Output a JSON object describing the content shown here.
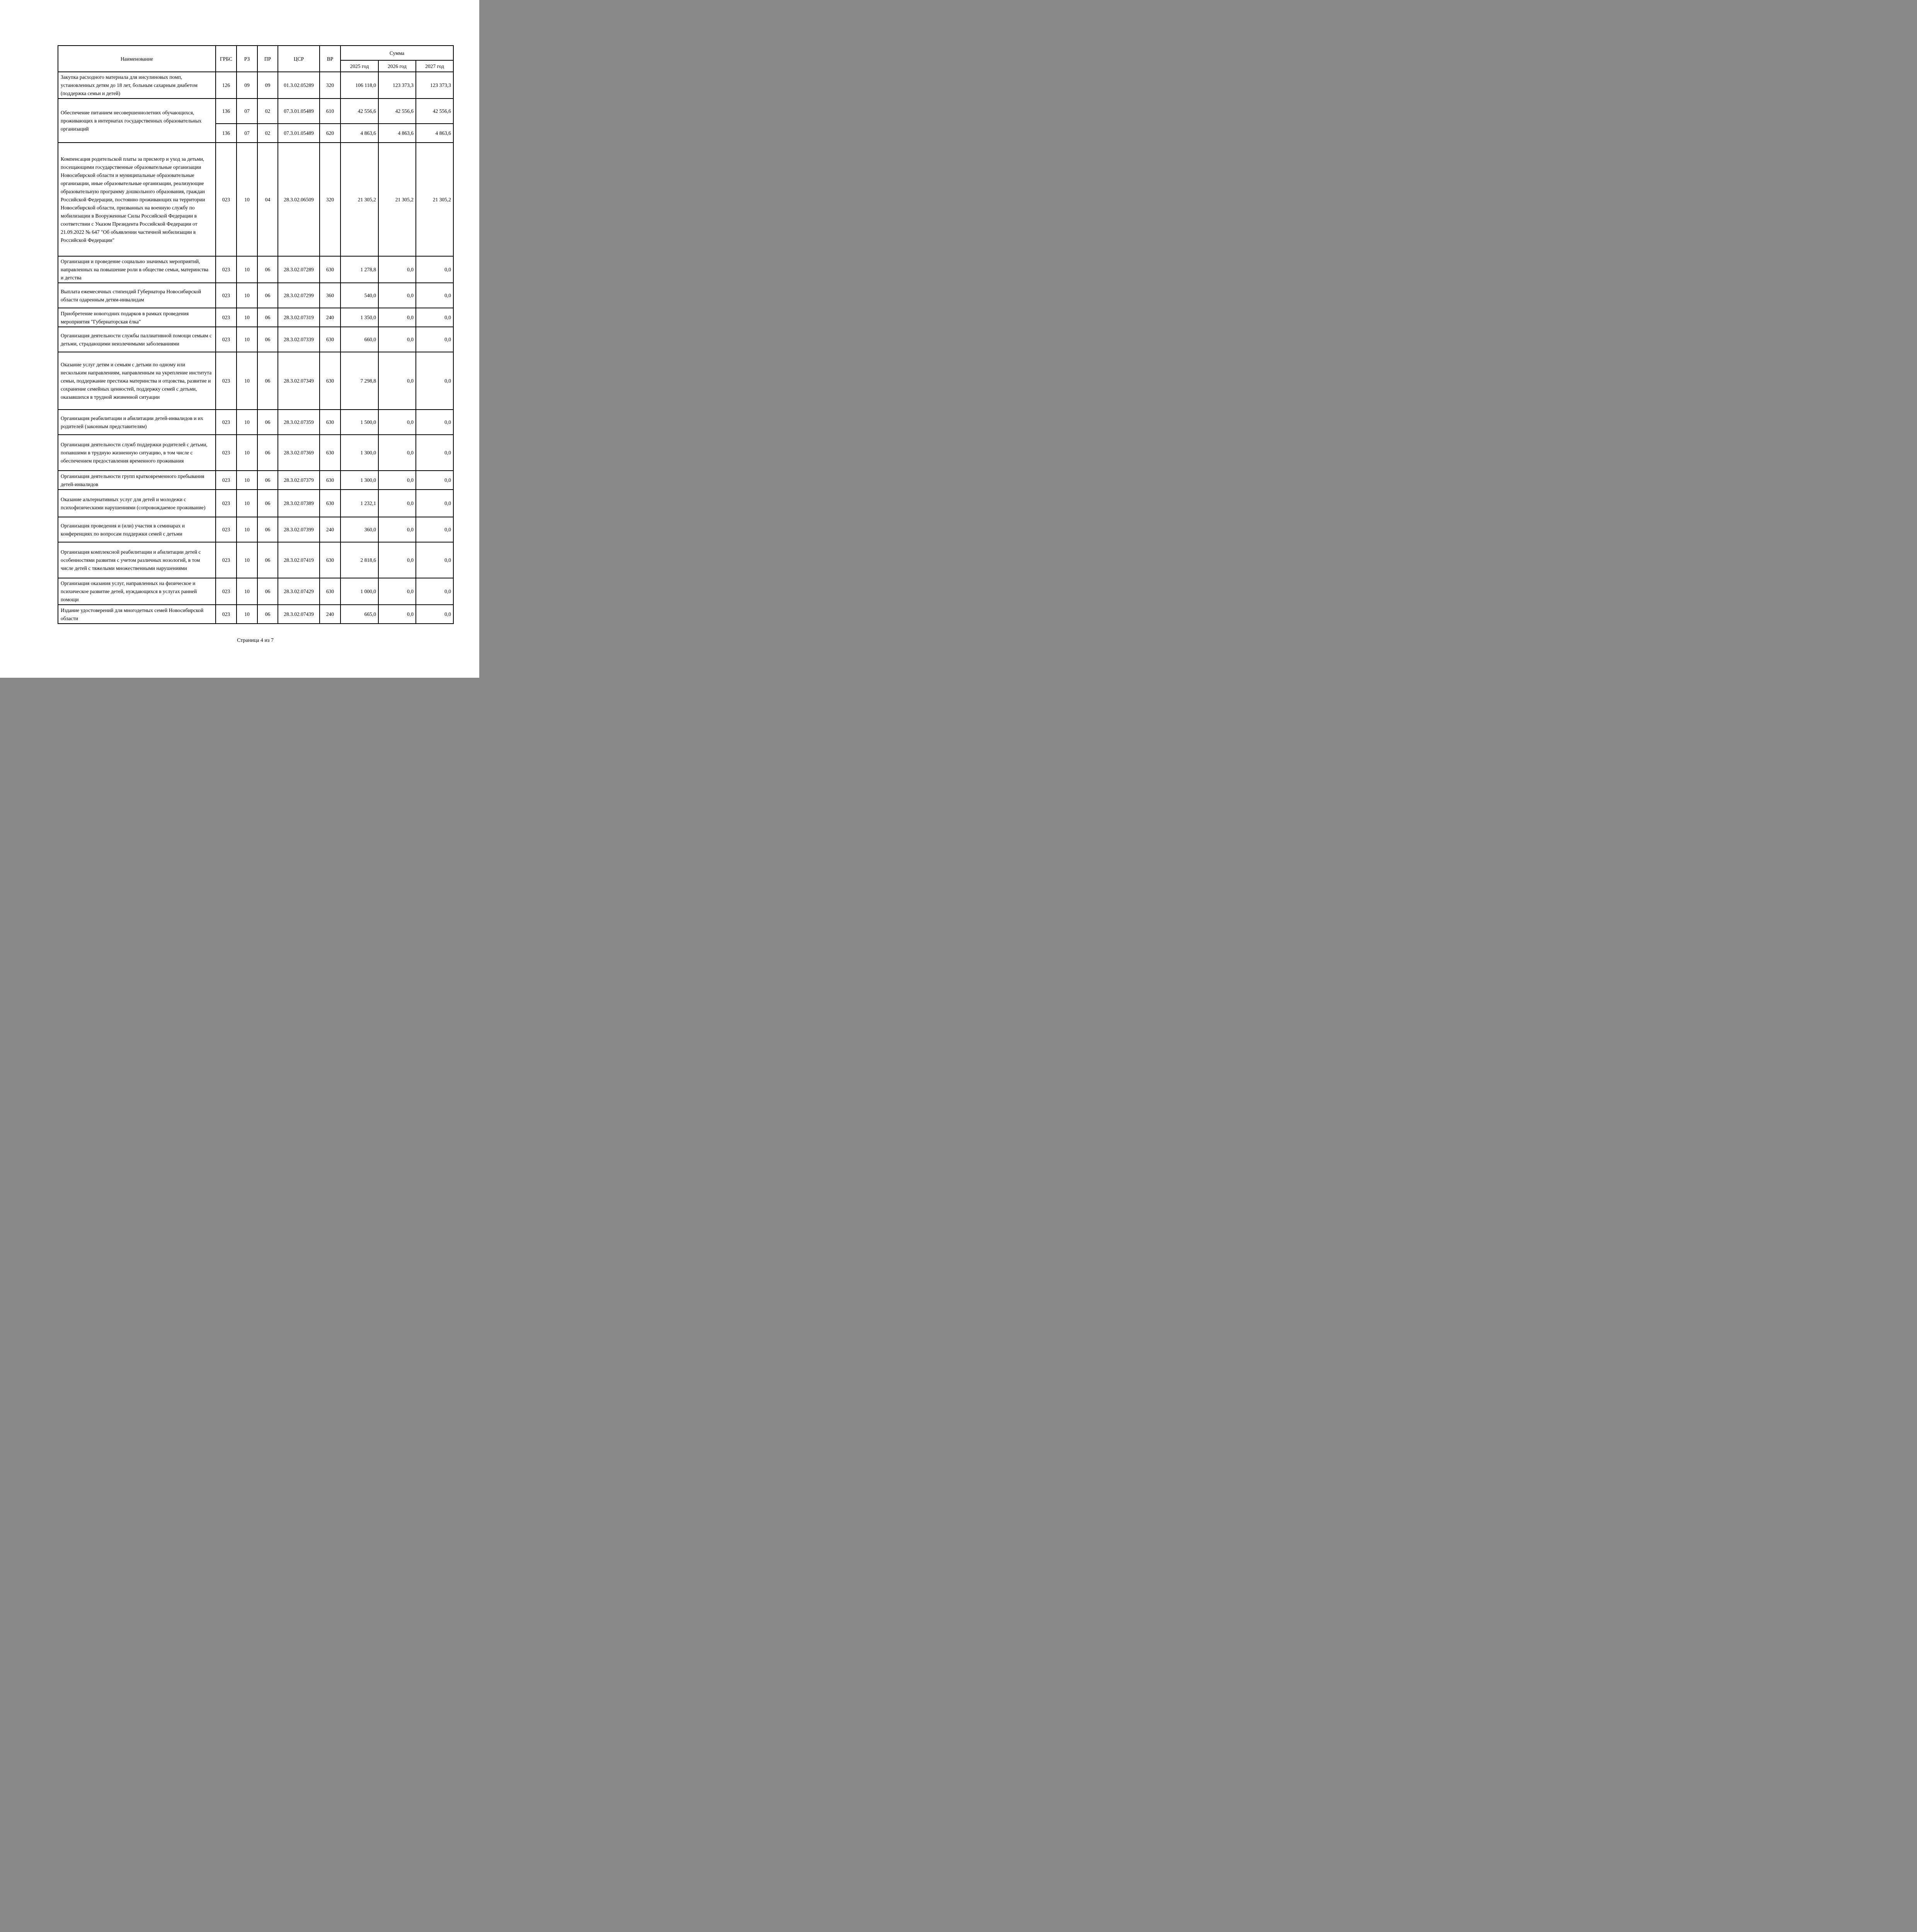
{
  "table": {
    "header": {
      "name": "Наименование",
      "grbs": "ГРБС",
      "rz": "РЗ",
      "pr": "ПР",
      "csr": "ЦСР",
      "vr": "ВР",
      "sum": "Сумма",
      "years": [
        "2025 год",
        "2026 год",
        "2027 год"
      ]
    },
    "rows": [
      {
        "name": "Закупка расходного материала для инсулиновых помп, установленных детям до 18 лет, больным сахарным диабетом (поддержка семьи и детей)",
        "grbs": "126",
        "rz": "09",
        "pr": "09",
        "csr": "01.3.02.05289",
        "vr": "320",
        "y2025": "106 118,0",
        "y2026": "123 373,3",
        "y2027": "123 373,3"
      },
      {
        "name": "Обеспечение питанием несовершеннолетних обучающихся, проживающих в интернатах государственных образовательных организаций",
        "name_rowspan": 2,
        "grbs": "136",
        "rz": "07",
        "pr": "02",
        "csr": "07.3.01.05489",
        "vr": "610",
        "y2025": "42 556,6",
        "y2026": "42 556,6",
        "y2027": "42 556,6"
      },
      {
        "name": null,
        "grbs": "136",
        "rz": "07",
        "pr": "02",
        "csr": "07.3.01.05489",
        "vr": "620",
        "y2025": "4 863,6",
        "y2026": "4 863,6",
        "y2027": "4 863,6"
      },
      {
        "name": "Компенсация родительской платы за присмотр и уход за детьми, посещающими государственные образовательные организации Новосибирской области и муниципальные образовательные организации, иные образовательные организации, реализующие образовательную программу дошкольного образования, граждан Российской Федерации, постоянно проживающих на территории Новосибирской области, призванных на военную службу по мобилизации в Вооруженные Силы Российской Федерации в соответствии с Указом Президента Российской Федерации от 21.09.2022 № 647 \"Об объявлении частичной мобилизации в Российской Федерации\"",
        "grbs": "023",
        "rz": "10",
        "pr": "04",
        "csr": "28.3.02.06509",
        "vr": "320",
        "y2025": "21 305,2",
        "y2026": "21 305,2",
        "y2027": "21 305,2"
      },
      {
        "name": "Организация и проведение социально значимых мероприятий, направленных на повышение роли в обществе семьи, материнства и детства",
        "grbs": "023",
        "rz": "10",
        "pr": "06",
        "csr": "28.3.02.07289",
        "vr": "630",
        "y2025": "1 278,8",
        "y2026": "0,0",
        "y2027": "0,0"
      },
      {
        "name": "Выплата ежемесячных стипендий Губернатора Новосибирской области одаренным детям-инвалидам",
        "grbs": "023",
        "rz": "10",
        "pr": "06",
        "csr": "28.3.02.07299",
        "vr": "360",
        "y2025": "540,0",
        "y2026": "0,0",
        "y2027": "0,0"
      },
      {
        "name": "Приобретение новогодних подарков в рамках проведения мероприятия \"Губернаторская ёлка\"",
        "grbs": "023",
        "rz": "10",
        "pr": "06",
        "csr": "28.3.02.07319",
        "vr": "240",
        "y2025": "1 350,0",
        "y2026": "0,0",
        "y2027": "0,0"
      },
      {
        "name": "Организация деятельности службы паллиативной помощи семьям с детьми, страдающими неизлечимыми заболеваниями",
        "grbs": "023",
        "rz": "10",
        "pr": "06",
        "csr": "28.3.02.07339",
        "vr": "630",
        "y2025": "660,0",
        "y2026": "0,0",
        "y2027": "0,0"
      },
      {
        "name": "Оказание услуг детям и семьям с детьми по одному или нескольким направлениям, направленным на укрепление института семьи, поддержание престижа материнства и отцовства, развитие и сохранение семейных ценностей, поддержку семей с детьми, оказавшихся в трудной жизненной ситуации",
        "grbs": "023",
        "rz": "10",
        "pr": "06",
        "csr": "28.3.02.07349",
        "vr": "630",
        "y2025": "7 298,8",
        "y2026": "0,0",
        "y2027": "0,0"
      },
      {
        "name": "Организация реабилитации и абилитации детей-инвалидов и их родителей (законным представителям)",
        "grbs": "023",
        "rz": "10",
        "pr": "06",
        "csr": "28.3.02.07359",
        "vr": "630",
        "y2025": "1 500,0",
        "y2026": "0,0",
        "y2027": "0,0"
      },
      {
        "name": "Организация деятельности служб поддержки родителей с детьми, попавшими в трудную жизненную ситуацию, в том числе с обеспечением предоставления временного проживания",
        "grbs": "023",
        "rz": "10",
        "pr": "06",
        "csr": "28.3.02.07369",
        "vr": "630",
        "y2025": "1 300,0",
        "y2026": "0,0",
        "y2027": "0,0"
      },
      {
        "name": "Организация деятельности групп кратковременного пребывания детей-инвалидов",
        "grbs": "023",
        "rz": "10",
        "pr": "06",
        "csr": "28.3.02.07379",
        "vr": "630",
        "y2025": "1 300,0",
        "y2026": "0,0",
        "y2027": "0,0"
      },
      {
        "name": "Оказание альтернативных услуг для детей и молодежи с психофизическими нарушениями (сопровождаемое проживание)",
        "grbs": "023",
        "rz": "10",
        "pr": "06",
        "csr": "28.3.02.07389",
        "vr": "630",
        "y2025": "1 232,1",
        "y2026": "0,0",
        "y2027": "0,0"
      },
      {
        "name": "Организация проведения и (или) участия в семинарах и конференциях по вопросам поддержки семей с детьми",
        "grbs": "023",
        "rz": "10",
        "pr": "06",
        "csr": "28.3.02.07399",
        "vr": "240",
        "y2025": "360,0",
        "y2026": "0,0",
        "y2027": "0,0"
      },
      {
        "name": "Организация комплексной реабилитации и абилитации детей с особенностями развития с учетом различных нозологий, в том числе детей с тяжелыми множественными нарушениями",
        "grbs": "023",
        "rz": "10",
        "pr": "06",
        "csr": "28.3.02.07419",
        "vr": "630",
        "y2025": "2 818,6",
        "y2026": "0,0",
        "y2027": "0,0"
      },
      {
        "name": "Организация оказания услуг, направленных на физическое и психическое развитие детей, нуждающихся в услугах ранней помощи",
        "grbs": "023",
        "rz": "10",
        "pr": "06",
        "csr": "28.3.02.07429",
        "vr": "630",
        "y2025": "1 000,0",
        "y2026": "0,0",
        "y2027": "0,0"
      },
      {
        "name": "Издание удостоверений для многодетных семей Новосибирской области",
        "grbs": "023",
        "rz": "10",
        "pr": "06",
        "csr": "28.3.02.07439",
        "vr": "240",
        "y2025": "665,0",
        "y2026": "0,0",
        "y2027": "0,0"
      }
    ]
  },
  "footer": {
    "page_label": "Страница 4 из 7"
  }
}
